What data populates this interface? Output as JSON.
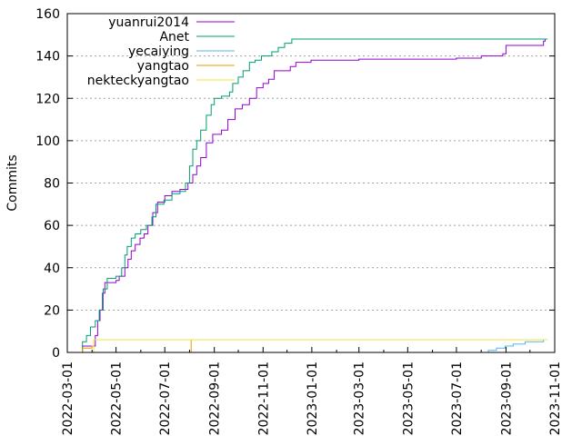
{
  "chart_data": {
    "type": "line",
    "xlabel": "",
    "ylabel": "Commits",
    "ylim": [
      0,
      160
    ],
    "xlim": [
      "2022-03-01",
      "2023-11-01"
    ],
    "grid": "horizontal dotted at each y tick",
    "legend_position": "top-left",
    "y_ticks": [
      "0",
      "20",
      "40",
      "60",
      "80",
      "100",
      "120",
      "140",
      "160"
    ],
    "x_ticks": [
      "2022-03-01",
      "2022-05-01",
      "2022-07-01",
      "2022-09-01",
      "2022-11-01",
      "2023-01-01",
      "2023-03-01",
      "2023-05-01",
      "2023-07-01",
      "2023-09-01",
      "2023-11-01"
    ],
    "series": [
      {
        "name": "yuanrui2014",
        "color": "#9400d3",
        "points": [
          [
            "2022-03-19",
            0
          ],
          [
            "2022-03-20",
            3
          ],
          [
            "2022-04-02",
            3
          ],
          [
            "2022-04-05",
            8
          ],
          [
            "2022-04-08",
            15
          ],
          [
            "2022-04-11",
            20
          ],
          [
            "2022-04-14",
            28
          ],
          [
            "2022-04-17",
            33
          ],
          [
            "2022-05-01",
            34
          ],
          [
            "2022-05-05",
            36
          ],
          [
            "2022-05-12",
            40
          ],
          [
            "2022-05-16",
            44
          ],
          [
            "2022-05-20",
            48
          ],
          [
            "2022-05-25",
            51
          ],
          [
            "2022-05-31",
            54
          ],
          [
            "2022-06-05",
            56
          ],
          [
            "2022-06-10",
            60
          ],
          [
            "2022-06-16",
            66
          ],
          [
            "2022-06-22",
            71
          ],
          [
            "2022-07-01",
            74
          ],
          [
            "2022-07-10",
            76
          ],
          [
            "2022-07-20",
            77
          ],
          [
            "2022-07-30",
            80
          ],
          [
            "2022-08-05",
            84
          ],
          [
            "2022-08-10",
            88
          ],
          [
            "2022-08-15",
            92
          ],
          [
            "2022-08-22",
            99
          ],
          [
            "2022-08-30",
            103
          ],
          [
            "2022-09-10",
            105
          ],
          [
            "2022-09-18",
            110
          ],
          [
            "2022-09-27",
            115
          ],
          [
            "2022-10-06",
            117
          ],
          [
            "2022-10-15",
            120
          ],
          [
            "2022-10-24",
            125
          ],
          [
            "2022-11-01",
            127
          ],
          [
            "2022-11-08",
            129
          ],
          [
            "2022-11-15",
            133
          ],
          [
            "2022-11-30",
            133
          ],
          [
            "2022-12-05",
            135
          ],
          [
            "2022-12-12",
            137
          ],
          [
            "2022-12-31",
            138
          ],
          [
            "2023-02-01",
            138
          ],
          [
            "2023-03-01",
            138.5
          ],
          [
            "2023-07-01",
            139
          ],
          [
            "2023-08-01",
            140
          ],
          [
            "2023-08-28",
            141
          ],
          [
            "2023-09-01",
            145
          ],
          [
            "2023-10-16",
            145
          ],
          [
            "2023-10-18",
            147
          ],
          [
            "2023-10-20",
            148
          ]
        ]
      },
      {
        "name": "Anet",
        "color": "#009e73",
        "points": [
          [
            "2022-03-19",
            0
          ],
          [
            "2022-03-20",
            5
          ],
          [
            "2022-03-25",
            8
          ],
          [
            "2022-03-30",
            12
          ],
          [
            "2022-04-05",
            15
          ],
          [
            "2022-04-10",
            20
          ],
          [
            "2022-04-15",
            30
          ],
          [
            "2022-04-20",
            35
          ],
          [
            "2022-05-01",
            36
          ],
          [
            "2022-05-08",
            40
          ],
          [
            "2022-05-12",
            46
          ],
          [
            "2022-05-15",
            50
          ],
          [
            "2022-05-20",
            54
          ],
          [
            "2022-05-25",
            56
          ],
          [
            "2022-06-01",
            58
          ],
          [
            "2022-06-08",
            60
          ],
          [
            "2022-06-15",
            64
          ],
          [
            "2022-06-20",
            70
          ],
          [
            "2022-06-30",
            72
          ],
          [
            "2022-07-10",
            75
          ],
          [
            "2022-07-20",
            76
          ],
          [
            "2022-07-27",
            80
          ],
          [
            "2022-08-01",
            88
          ],
          [
            "2022-08-05",
            96
          ],
          [
            "2022-08-10",
            100
          ],
          [
            "2022-08-15",
            105
          ],
          [
            "2022-08-22",
            112
          ],
          [
            "2022-08-28",
            117
          ],
          [
            "2022-09-01",
            120
          ],
          [
            "2022-09-10",
            121
          ],
          [
            "2022-09-20",
            123
          ],
          [
            "2022-09-24",
            127
          ],
          [
            "2022-10-01",
            130
          ],
          [
            "2022-10-07",
            133
          ],
          [
            "2022-10-15",
            137
          ],
          [
            "2022-10-22",
            138
          ],
          [
            "2022-10-30",
            140
          ],
          [
            "2022-11-12",
            142
          ],
          [
            "2022-11-20",
            144
          ],
          [
            "2022-11-28",
            146
          ],
          [
            "2022-12-07",
            148
          ],
          [
            "2023-10-23",
            148
          ]
        ]
      },
      {
        "name": "yecaiying",
        "color": "#56b4e9",
        "points": [
          [
            "2023-07-25",
            0
          ],
          [
            "2023-08-10",
            1
          ],
          [
            "2023-08-20",
            2
          ],
          [
            "2023-08-31",
            3
          ],
          [
            "2023-09-10",
            4
          ],
          [
            "2023-09-25",
            5
          ],
          [
            "2023-10-12",
            5
          ],
          [
            "2023-10-18",
            6
          ],
          [
            "2023-10-23",
            6
          ]
        ]
      },
      {
        "name": "yangtao",
        "color": "#e69f00",
        "points": [
          [
            "2022-03-19",
            0
          ],
          [
            "2022-03-20",
            2
          ],
          [
            "2022-04-01",
            3
          ],
          [
            "2022-04-03",
            6
          ],
          [
            "2022-08-01",
            6
          ],
          [
            "2022-08-03",
            0
          ]
        ]
      },
      {
        "name": "nekteckyangtao",
        "color": "#f0e442",
        "points": [
          [
            "2022-04-02",
            0
          ],
          [
            "2022-04-03",
            6
          ],
          [
            "2023-10-23",
            6
          ]
        ]
      }
    ]
  }
}
